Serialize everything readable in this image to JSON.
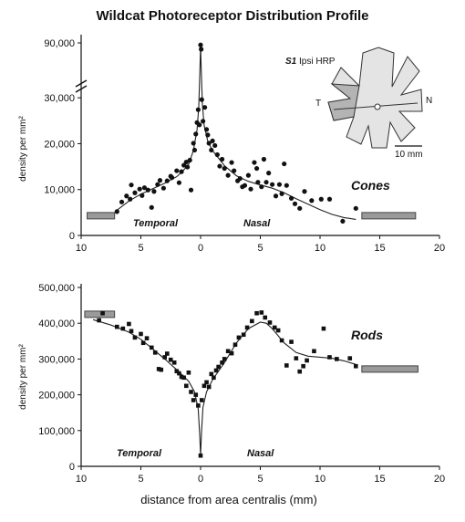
{
  "title": "Wildcat Photoreceptor Distribution Profile",
  "x_axis_label": "distance from area centralis (mm)",
  "inset": {
    "caption_italic": "S1",
    "caption_rest": " Ipsi HRP",
    "left_label": "T",
    "right_label": "N",
    "scale_label": "10 mm"
  },
  "chart_data": [
    {
      "type": "scatter",
      "name": "Cones",
      "label": "Cones",
      "ylabel": "density per mm²",
      "xlim_note": "x ticks read 10,5,0 (temporal) then 5..20 (nasal); temporal distances plotted as negative",
      "x_tick_labels": [
        "10",
        "5",
        "0",
        "5",
        "10",
        "15",
        "20"
      ],
      "x_tick_values": [
        -10,
        -5,
        0,
        5,
        10,
        15,
        20
      ],
      "y_tick_labels": [
        "0",
        "10,000",
        "20,000",
        "30,000",
        "90,000"
      ],
      "y_axis_break": true,
      "region_labels": [
        "Temporal",
        "Nasal"
      ],
      "points": [
        [
          -7.0,
          5200
        ],
        [
          -6.6,
          7300
        ],
        [
          -6.2,
          8600
        ],
        [
          -5.9,
          7900
        ],
        [
          -5.8,
          11000
        ],
        [
          -5.5,
          9300
        ],
        [
          -5.1,
          10100
        ],
        [
          -4.9,
          8700
        ],
        [
          -4.7,
          10400
        ],
        [
          -4.4,
          9900
        ],
        [
          -4.1,
          6100
        ],
        [
          -3.9,
          9600
        ],
        [
          -3.6,
          11100
        ],
        [
          -3.4,
          12000
        ],
        [
          -3.1,
          10300
        ],
        [
          -2.8,
          11900
        ],
        [
          -2.5,
          12900
        ],
        [
          -2.4,
          12600
        ],
        [
          -2.0,
          14100
        ],
        [
          -1.8,
          11500
        ],
        [
          -1.6,
          13900
        ],
        [
          -1.4,
          15300
        ],
        [
          -1.2,
          16000
        ],
        [
          -1.1,
          14900
        ],
        [
          -0.9,
          16400
        ],
        [
          -0.8,
          9900
        ],
        [
          -0.6,
          20100
        ],
        [
          -0.5,
          18600
        ],
        [
          -0.4,
          22100
        ],
        [
          -0.3,
          24600
        ],
        [
          -0.2,
          27400
        ],
        [
          -0.1,
          24100
        ],
        [
          0.0,
          86500
        ],
        [
          0.05,
          79000
        ],
        [
          0.1,
          29600
        ],
        [
          0.2,
          24900
        ],
        [
          0.35,
          27900
        ],
        [
          0.5,
          23100
        ],
        [
          0.6,
          21900
        ],
        [
          0.7,
          20100
        ],
        [
          0.9,
          18600
        ],
        [
          1.0,
          20600
        ],
        [
          1.2,
          19600
        ],
        [
          1.4,
          17600
        ],
        [
          1.6,
          15100
        ],
        [
          1.8,
          16600
        ],
        [
          2.0,
          14600
        ],
        [
          2.3,
          13100
        ],
        [
          2.6,
          15900
        ],
        [
          2.8,
          14100
        ],
        [
          3.1,
          11900
        ],
        [
          3.3,
          12400
        ],
        [
          3.5,
          10600
        ],
        [
          3.7,
          10900
        ],
        [
          4.0,
          13100
        ],
        [
          4.2,
          10100
        ],
        [
          4.5,
          15900
        ],
        [
          4.7,
          14600
        ],
        [
          4.8,
          11600
        ],
        [
          5.1,
          10600
        ],
        [
          5.3,
          16600
        ],
        [
          5.5,
          11600
        ],
        [
          5.7,
          13600
        ],
        [
          6.0,
          11100
        ],
        [
          6.3,
          8600
        ],
        [
          6.6,
          11100
        ],
        [
          6.8,
          9100
        ],
        [
          7.0,
          15600
        ],
        [
          7.2,
          10900
        ],
        [
          7.6,
          8100
        ],
        [
          7.9,
          6900
        ],
        [
          8.3,
          5900
        ],
        [
          8.7,
          9600
        ],
        [
          9.3,
          7600
        ],
        [
          10.1,
          7900
        ],
        [
          10.8,
          7900
        ],
        [
          11.9,
          3100
        ],
        [
          13.0,
          5900
        ]
      ],
      "fit_curve": [
        [
          -7.0,
          5500
        ],
        [
          -6.0,
          7500
        ],
        [
          -5.0,
          9000
        ],
        [
          -4.0,
          10200
        ],
        [
          -3.0,
          11400
        ],
        [
          -2.0,
          12800
        ],
        [
          -1.5,
          14000
        ],
        [
          -1.0,
          15500
        ],
        [
          -0.6,
          18500
        ],
        [
          -0.3,
          23000
        ],
        [
          -0.15,
          28000
        ],
        [
          -0.06,
          40000
        ],
        [
          0.0,
          85000
        ],
        [
          0.06,
          40000
        ],
        [
          0.15,
          28500
        ],
        [
          0.3,
          24000
        ],
        [
          0.6,
          20500
        ],
        [
          1.0,
          18500
        ],
        [
          2.0,
          15200
        ],
        [
          3.0,
          13000
        ],
        [
          4.0,
          11800
        ],
        [
          5.0,
          11000
        ],
        [
          6.0,
          10300
        ],
        [
          7.0,
          9300
        ],
        [
          8.0,
          8000
        ],
        [
          9.0,
          6800
        ],
        [
          10.0,
          5600
        ],
        [
          11.0,
          4600
        ],
        [
          12.0,
          3900
        ],
        [
          13.0,
          3500
        ]
      ],
      "range_bars": {
        "left": {
          "x": [
            -9.5,
            -7.2
          ],
          "y": 4300
        },
        "right": {
          "x": [
            13.5,
            18.0
          ],
          "y": 4300
        }
      },
      "ylim_lower": [
        0,
        35000
      ],
      "ylim_upper_value": 90000
    },
    {
      "type": "scatter",
      "name": "Rods",
      "label": "Rods",
      "ylabel": "density per mm²",
      "x_tick_labels": [
        "10",
        "5",
        "0",
        "5",
        "10",
        "15",
        "20"
      ],
      "x_tick_values": [
        -10,
        -5,
        0,
        5,
        10,
        15,
        20
      ],
      "y_tick_labels": [
        "0",
        "100,000",
        "200,000",
        "300,000",
        "400,000",
        "500,000"
      ],
      "ylim": [
        0,
        500000
      ],
      "region_labels": [
        "Temporal",
        "Nasal"
      ],
      "points": [
        [
          -8.5,
          408000
        ],
        [
          -8.2,
          428000
        ],
        [
          -7.0,
          390000
        ],
        [
          -6.5,
          385000
        ],
        [
          -6.0,
          398000
        ],
        [
          -5.8,
          378000
        ],
        [
          -5.5,
          360000
        ],
        [
          -5.0,
          370000
        ],
        [
          -4.8,
          345000
        ],
        [
          -4.5,
          358000
        ],
        [
          -4.1,
          332000
        ],
        [
          -3.8,
          318000
        ],
        [
          -3.5,
          272000
        ],
        [
          -3.3,
          270000
        ],
        [
          -3.0,
          305000
        ],
        [
          -2.8,
          315000
        ],
        [
          -2.5,
          298000
        ],
        [
          -2.2,
          290000
        ],
        [
          -2.0,
          266000
        ],
        [
          -1.8,
          260000
        ],
        [
          -1.6,
          250000
        ],
        [
          -1.4,
          248000
        ],
        [
          -1.2,
          225000
        ],
        [
          -1.0,
          262000
        ],
        [
          -0.8,
          208000
        ],
        [
          -0.6,
          185000
        ],
        [
          -0.4,
          200000
        ],
        [
          -0.2,
          170000
        ],
        [
          0.0,
          30000
        ],
        [
          0.1,
          185000
        ],
        [
          0.3,
          225000
        ],
        [
          0.5,
          235000
        ],
        [
          0.7,
          222000
        ],
        [
          0.9,
          258000
        ],
        [
          1.1,
          248000
        ],
        [
          1.3,
          268000
        ],
        [
          1.5,
          278000
        ],
        [
          1.8,
          290000
        ],
        [
          2.0,
          300000
        ],
        [
          2.3,
          322000
        ],
        [
          2.6,
          316000
        ],
        [
          2.9,
          340000
        ],
        [
          3.2,
          360000
        ],
        [
          3.6,
          368000
        ],
        [
          3.9,
          388000
        ],
        [
          4.3,
          406000
        ],
        [
          4.7,
          428000
        ],
        [
          5.1,
          430000
        ],
        [
          5.4,
          416000
        ],
        [
          5.8,
          402000
        ],
        [
          6.2,
          388000
        ],
        [
          6.5,
          380000
        ],
        [
          6.8,
          352000
        ],
        [
          7.2,
          282000
        ],
        [
          7.6,
          348000
        ],
        [
          8.0,
          302000
        ],
        [
          8.3,
          265000
        ],
        [
          8.6,
          280000
        ],
        [
          8.9,
          296000
        ],
        [
          9.5,
          322000
        ],
        [
          10.3,
          385000
        ],
        [
          10.8,
          305000
        ],
        [
          11.4,
          300000
        ],
        [
          12.5,
          302000
        ],
        [
          13.0,
          280000
        ]
      ],
      "fit_curve": [
        [
          -9.0,
          410000
        ],
        [
          -7.5,
          395000
        ],
        [
          -6.0,
          375000
        ],
        [
          -5.0,
          355000
        ],
        [
          -4.0,
          328000
        ],
        [
          -3.0,
          300000
        ],
        [
          -2.0,
          270000
        ],
        [
          -1.0,
          238000
        ],
        [
          -0.5,
          208000
        ],
        [
          -0.2,
          160000
        ],
        [
          -0.08,
          90000
        ],
        [
          0.0,
          30000
        ],
        [
          0.08,
          95000
        ],
        [
          0.2,
          165000
        ],
        [
          0.5,
          208000
        ],
        [
          1.0,
          242000
        ],
        [
          2.0,
          290000
        ],
        [
          3.0,
          345000
        ],
        [
          4.0,
          385000
        ],
        [
          5.0,
          403000
        ],
        [
          5.5,
          400000
        ],
        [
          6.0,
          385000
        ],
        [
          7.0,
          345000
        ],
        [
          8.0,
          318000
        ],
        [
          9.0,
          308000
        ],
        [
          10.0,
          305000
        ],
        [
          11.0,
          302000
        ],
        [
          12.0,
          295000
        ],
        [
          13.0,
          285000
        ]
      ],
      "range_bars": {
        "left": {
          "x": [
            -9.7,
            -7.2
          ],
          "y": 425000
        },
        "right": {
          "x": [
            13.5,
            18.2
          ],
          "y": 272000
        }
      }
    }
  ]
}
